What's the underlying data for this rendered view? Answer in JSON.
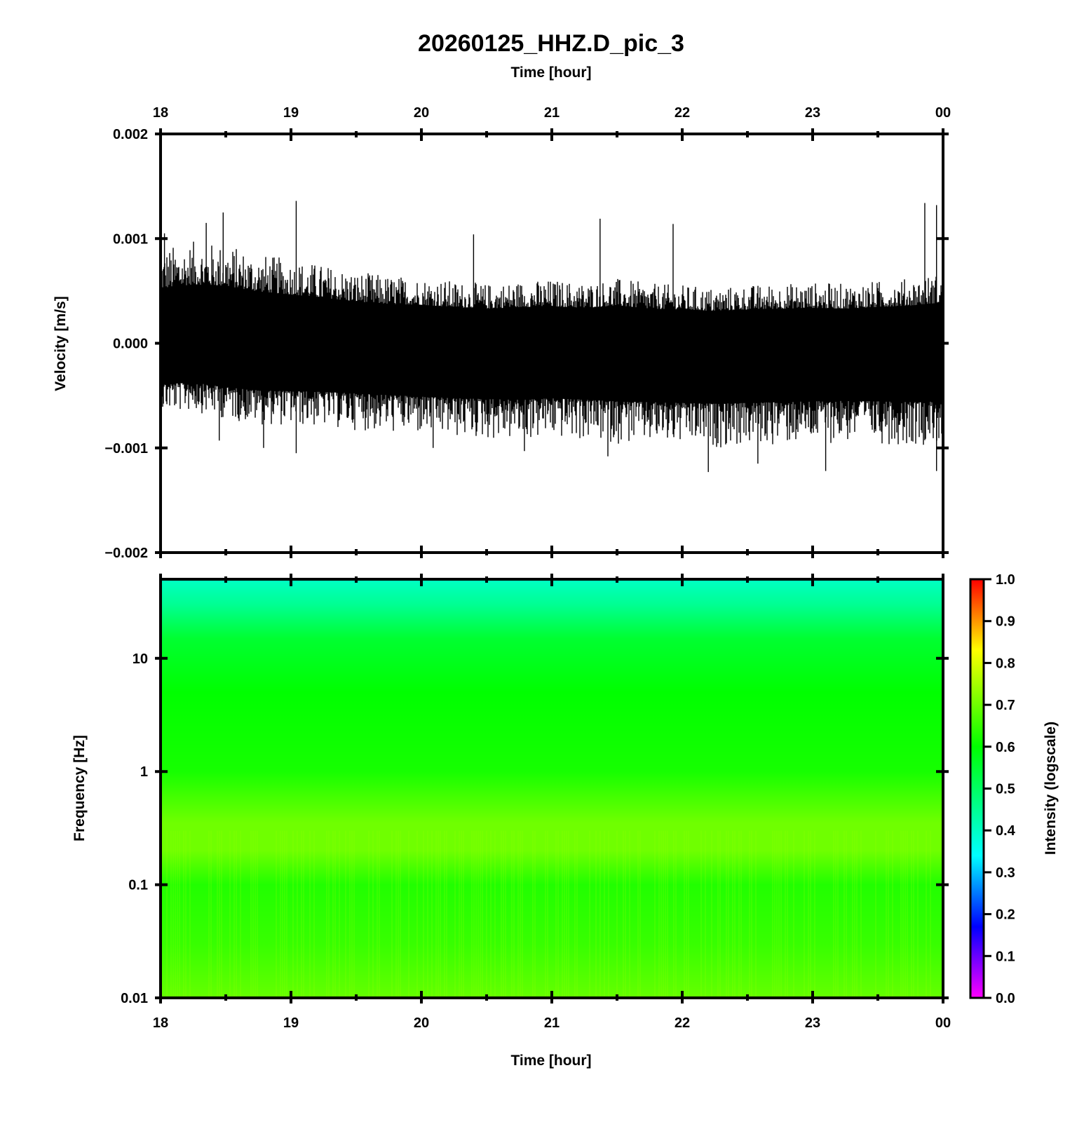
{
  "figure_title": "20260125_HHZ.D_pic_3",
  "top_axis_label": "Time [hour]",
  "bottom_axis_label": "Time [hour]",
  "chart_data": [
    {
      "type": "line",
      "panel": "waveform",
      "ylabel": "Velocity [m/s]",
      "xlabel": "Time [hour]",
      "x_ticks": [
        "18",
        "19",
        "20",
        "21",
        "22",
        "23",
        "00"
      ],
      "xlim": [
        18,
        24
      ],
      "ylim": [
        -0.002,
        0.002
      ],
      "y_ticks": [
        "0.002",
        "0.001",
        "0.000",
        "−0.001",
        "−0.002"
      ],
      "y_tick_values": [
        0.002,
        0.001,
        0.0,
        -0.001,
        -0.002
      ],
      "series": [
        {
          "color": "#000000",
          "x": [
            18.0,
            18.25,
            18.5,
            18.75,
            19.0,
            19.25,
            19.5,
            19.75,
            20.0,
            20.25,
            20.5,
            20.75,
            21.0,
            21.25,
            21.5,
            21.75,
            22.0,
            22.25,
            22.5,
            22.75,
            23.0,
            23.25,
            23.5,
            23.75,
            24.0
          ],
          "envelope_max": [
            0.0007,
            0.00075,
            0.00073,
            0.00066,
            0.00062,
            0.00058,
            0.00053,
            0.0005,
            0.00049,
            0.00046,
            0.00044,
            0.00046,
            0.00047,
            0.00045,
            0.00048,
            0.00044,
            0.00043,
            0.00041,
            0.00043,
            0.00044,
            0.00045,
            0.00044,
            0.00046,
            0.00048,
            0.00052
          ],
          "envelope_min": [
            -0.00052,
            -0.0005,
            -0.00056,
            -0.0006,
            -0.00061,
            -0.00062,
            -0.00064,
            -0.00066,
            -0.00068,
            -0.0007,
            -0.00071,
            -0.00072,
            -0.0007,
            -0.00072,
            -0.00074,
            -0.00075,
            -0.00076,
            -0.00077,
            -0.00076,
            -0.00075,
            -0.00074,
            -0.00073,
            -0.00074,
            -0.00075,
            -0.00074
          ],
          "peaks": [
            {
              "x": 18.03,
              "y": 0.00105
            },
            {
              "x": 18.35,
              "y": 0.00115
            },
            {
              "x": 18.48,
              "y": 0.00125
            },
            {
              "x": 19.04,
              "y": 0.00136
            },
            {
              "x": 20.4,
              "y": 0.00104
            },
            {
              "x": 21.37,
              "y": 0.00119
            },
            {
              "x": 21.93,
              "y": 0.00114
            },
            {
              "x": 23.86,
              "y": 0.00134
            },
            {
              "x": 23.95,
              "y": 0.00132
            },
            {
              "x": 18.45,
              "y": -0.00093
            },
            {
              "x": 18.79,
              "y": -0.001
            },
            {
              "x": 19.04,
              "y": -0.00105
            },
            {
              "x": 20.09,
              "y": -0.001
            },
            {
              "x": 20.79,
              "y": -0.00103
            },
            {
              "x": 21.43,
              "y": -0.00108
            },
            {
              "x": 22.2,
              "y": -0.00123
            },
            {
              "x": 22.58,
              "y": -0.00115
            },
            {
              "x": 23.1,
              "y": -0.00122
            },
            {
              "x": 23.95,
              "y": -0.00122
            }
          ]
        }
      ]
    },
    {
      "type": "heatmap",
      "panel": "spectrogram",
      "ylabel": "Frequency [Hz]",
      "xlabel": "Time [hour]",
      "x_ticks": [
        "18",
        "19",
        "20",
        "21",
        "22",
        "23",
        "00"
      ],
      "xlim": [
        18,
        24
      ],
      "y_scale": "log",
      "ylim": [
        0.01,
        50
      ],
      "y_ticks": [
        "10",
        "1",
        "0.1",
        "0.01"
      ],
      "y_tick_values": [
        10,
        1,
        0.1,
        0.01
      ],
      "colorbar": {
        "label": "Intensity (logscale)",
        "range": [
          0.0,
          1.0
        ],
        "ticks": [
          "1.0",
          "0.9",
          "0.8",
          "0.7",
          "0.6",
          "0.5",
          "0.4",
          "0.3",
          "0.2",
          "0.1",
          "0.0"
        ],
        "tick_values": [
          1.0,
          0.9,
          0.8,
          0.7,
          0.6,
          0.5,
          0.4,
          0.3,
          0.2,
          0.1,
          0.0
        ],
        "colormap": [
          {
            "v": 0.0,
            "color": "#ff00ff"
          },
          {
            "v": 0.17,
            "color": "#0000ff"
          },
          {
            "v": 0.34,
            "color": "#00ffff"
          },
          {
            "v": 0.6,
            "color": "#00ff00"
          },
          {
            "v": 0.83,
            "color": "#ffff00"
          },
          {
            "v": 1.0,
            "color": "#ff0000"
          }
        ]
      },
      "intensity_profile": [
        {
          "freq_hz": 50,
          "intensity": 0.4
        },
        {
          "freq_hz": 30,
          "intensity": 0.45
        },
        {
          "freq_hz": 15,
          "intensity": 0.55
        },
        {
          "freq_hz": 5,
          "intensity": 0.6
        },
        {
          "freq_hz": 1,
          "intensity": 0.62
        },
        {
          "freq_hz": 0.6,
          "intensity": 0.66
        },
        {
          "freq_hz": 0.35,
          "intensity": 0.7
        },
        {
          "freq_hz": 0.2,
          "intensity": 0.7
        },
        {
          "freq_hz": 0.1,
          "intensity": 0.63
        },
        {
          "freq_hz": 0.03,
          "intensity": 0.65
        },
        {
          "freq_hz": 0.01,
          "intensity": 0.69
        }
      ]
    }
  ]
}
